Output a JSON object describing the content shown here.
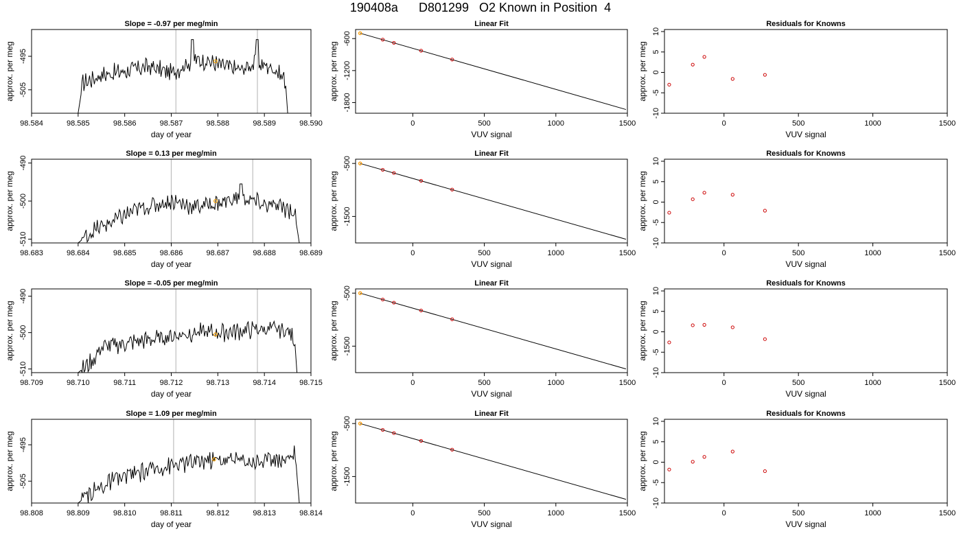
{
  "title": "190408a      D801299   O2 Known in Position  4",
  "colors": {
    "trace": "#000000",
    "marker_orange": "#FFA500",
    "marker_red": "#CC0000",
    "vline": "#BEBEBE",
    "fit_line": "#000000"
  },
  "chart_data": [
    {
      "type": "line",
      "row": 0,
      "panel": "time",
      "title": "Slope =  -0.97  per meg/min",
      "xlabel": "day of year",
      "ylabel": "approx. per meg",
      "xlim": [
        98.584,
        98.59
      ],
      "ylim": [
        -512,
        -487
      ],
      "xticks": [
        "98.584",
        "98.585",
        "98.586",
        "98.587",
        "98.588",
        "98.589",
        "98.590"
      ],
      "yticks": [
        "-495",
        "-505"
      ],
      "vlines": [
        98.5871,
        98.58885
      ],
      "trace_start": 98.585,
      "trace_end": 98.5895,
      "trace_points": [
        [
          98.585,
          -512
        ],
        [
          98.5851,
          -503
        ],
        [
          98.5855,
          -500.5
        ],
        [
          98.586,
          -499.5
        ],
        [
          98.5865,
          -498
        ],
        [
          98.587,
          -500
        ],
        [
          98.5875,
          -496
        ],
        [
          98.5878,
          -496.5
        ],
        [
          98.588,
          -497.5
        ],
        [
          98.5885,
          -499
        ],
        [
          98.5888,
          -497
        ],
        [
          98.5892,
          -498.5
        ],
        [
          98.58945,
          -502
        ],
        [
          98.5895,
          -512
        ]
      ],
      "spikes": [
        [
          98.58745,
          -490
        ],
        [
          98.58885,
          -490
        ]
      ],
      "highlight": [
        98.58795,
        -496.5
      ]
    },
    {
      "type": "scatter",
      "row": 0,
      "panel": "fit",
      "title": "Linear Fit",
      "xlabel": "VUV signal",
      "ylabel": "approx. per meg",
      "xlim": [
        -400,
        1500
      ],
      "ylim": [
        -2000,
        -430
      ],
      "xticks": [
        "0",
        "500",
        "1000",
        "1500"
      ],
      "yticks": [
        "-600",
        "-1200",
        "-1800"
      ],
      "line": [
        [
          -368,
          -500
        ],
        [
          1490,
          -1930
        ]
      ],
      "points": [
        [
          -368,
          -500
        ],
        [
          -210,
          -620
        ],
        [
          -132,
          -680
        ],
        [
          58,
          -827
        ],
        [
          275,
          -993
        ]
      ],
      "highlight": [
        -368,
        -500
      ]
    },
    {
      "type": "scatter",
      "row": 0,
      "panel": "resid",
      "title": "Residuals for Knowns",
      "xlabel": "VUV signal",
      "ylabel": "approx. per meg",
      "xlim": [
        -400,
        1500
      ],
      "ylim": [
        -10,
        10.5
      ],
      "xticks": [
        "0",
        "500",
        "1000",
        "1500"
      ],
      "yticks": [
        "10",
        "5",
        "0",
        "-5",
        "-10"
      ],
      "points": [
        [
          -368,
          -3.0
        ],
        [
          -210,
          1.9
        ],
        [
          -132,
          3.8
        ],
        [
          58,
          -1.6
        ],
        [
          275,
          -0.6
        ]
      ]
    },
    {
      "type": "line",
      "row": 1,
      "panel": "time",
      "title": "Slope =  0.13  per meg/min",
      "xlabel": "day of year",
      "ylabel": "approx. per meg",
      "xlim": [
        98.683,
        98.689
      ],
      "ylim": [
        -511,
        -489
      ],
      "xticks": [
        "98.683",
        "98.684",
        "98.685",
        "98.686",
        "98.687",
        "98.688",
        "98.689"
      ],
      "yticks": [
        "-490",
        "-500",
        "-510"
      ],
      "vlines": [
        98.686,
        98.68775
      ],
      "trace_start": 98.684,
      "trace_end": 98.68875,
      "trace_points": [
        [
          98.684,
          -511
        ],
        [
          98.6843,
          -508
        ],
        [
          98.6848,
          -505
        ],
        [
          98.6853,
          -502
        ],
        [
          98.686,
          -500
        ],
        [
          98.6865,
          -501.5
        ],
        [
          98.687,
          -500.5
        ],
        [
          98.6875,
          -499
        ],
        [
          98.688,
          -501
        ],
        [
          98.6885,
          -502
        ],
        [
          98.68865,
          -503
        ],
        [
          98.68875,
          -511
        ]
      ],
      "spikes": [
        [
          98.6875,
          -495.5
        ]
      ],
      "highlight": [
        98.68695,
        -500
      ]
    },
    {
      "type": "scatter",
      "row": 1,
      "panel": "fit",
      "title": "Linear Fit",
      "xlabel": "VUV signal",
      "ylabel": "approx. per meg",
      "xlim": [
        -400,
        1500
      ],
      "ylim": [
        -2000,
        -420
      ],
      "xticks": [
        "0",
        "500",
        "1000",
        "1500"
      ],
      "yticks": [
        "-500",
        "-1500"
      ],
      "line": [
        [
          -368,
          -500
        ],
        [
          1490,
          -1930
        ]
      ],
      "points": [
        [
          -368,
          -500
        ],
        [
          -210,
          -620
        ],
        [
          -132,
          -680
        ],
        [
          58,
          -827
        ],
        [
          275,
          -993
        ]
      ],
      "highlight": [
        -368,
        -500
      ]
    },
    {
      "type": "scatter",
      "row": 1,
      "panel": "resid",
      "title": "Residuals for Knowns",
      "xlabel": "VUV signal",
      "ylabel": "approx. per meg",
      "xlim": [
        -400,
        1500
      ],
      "ylim": [
        -10,
        10.5
      ],
      "xticks": [
        "0",
        "500",
        "1000",
        "1500"
      ],
      "yticks": [
        "10",
        "5",
        "0",
        "-5",
        "-10"
      ],
      "points": [
        [
          -368,
          -2.6
        ],
        [
          -210,
          0.7
        ],
        [
          -132,
          2.3
        ],
        [
          58,
          1.8
        ],
        [
          275,
          -2.1
        ]
      ]
    },
    {
      "type": "line",
      "row": 2,
      "panel": "time",
      "title": "Slope =  -0.05  per meg/min",
      "xlabel": "day of year",
      "ylabel": "approx. per meg",
      "xlim": [
        98.709,
        98.715
      ],
      "ylim": [
        -511,
        -488
      ],
      "xticks": [
        "98.709",
        "98.710",
        "98.711",
        "98.712",
        "98.713",
        "98.714",
        "98.715"
      ],
      "yticks": [
        "-490",
        "-500",
        "-510"
      ],
      "vlines": [
        98.7121,
        98.71385
      ],
      "trace_start": 98.71,
      "trace_end": 98.7147,
      "trace_points": [
        [
          98.71,
          -511
        ],
        [
          98.7103,
          -508
        ],
        [
          98.7105,
          -504
        ],
        [
          98.711,
          -503
        ],
        [
          98.7115,
          -502
        ],
        [
          98.712,
          -501
        ],
        [
          98.7125,
          -500
        ],
        [
          98.713,
          -500
        ],
        [
          98.7135,
          -499.5
        ],
        [
          98.714,
          -499
        ],
        [
          98.7145,
          -499.5
        ],
        [
          98.71465,
          -502
        ],
        [
          98.7147,
          -511
        ]
      ],
      "spikes": [],
      "highlight": [
        98.71295,
        -500.5
      ]
    },
    {
      "type": "scatter",
      "row": 2,
      "panel": "fit",
      "title": "Linear Fit",
      "xlabel": "VUV signal",
      "ylabel": "approx. per meg",
      "xlim": [
        -400,
        1500
      ],
      "ylim": [
        -2000,
        -420
      ],
      "xticks": [
        "0",
        "500",
        "1000",
        "1500"
      ],
      "yticks": [
        "-500",
        "-1500"
      ],
      "line": [
        [
          -368,
          -500
        ],
        [
          1490,
          -1930
        ]
      ],
      "points": [
        [
          -368,
          -500
        ],
        [
          -210,
          -620
        ],
        [
          -132,
          -680
        ],
        [
          58,
          -827
        ],
        [
          275,
          -993
        ]
      ],
      "highlight": [
        -368,
        -500
      ]
    },
    {
      "type": "scatter",
      "row": 2,
      "panel": "resid",
      "title": "Residuals for Knowns",
      "xlabel": "VUV signal",
      "ylabel": "approx. per meg",
      "xlim": [
        -400,
        1500
      ],
      "ylim": [
        -10,
        10.5
      ],
      "xticks": [
        "0",
        "500",
        "1000",
        "1500"
      ],
      "yticks": [
        "10",
        "5",
        "0",
        "-5",
        "-10"
      ],
      "points": [
        [
          -368,
          -2.6
        ],
        [
          -210,
          1.6
        ],
        [
          -132,
          1.7
        ],
        [
          58,
          1.1
        ],
        [
          275,
          -1.8
        ]
      ]
    },
    {
      "type": "line",
      "row": 3,
      "panel": "time",
      "title": "Slope =  1.09  per meg/min",
      "xlabel": "day of year",
      "ylabel": "approx. per meg",
      "xlim": [
        98.808,
        98.814
      ],
      "ylim": [
        -511,
        -488
      ],
      "xticks": [
        "98.808",
        "98.809",
        "98.810",
        "98.811",
        "98.812",
        "98.813",
        "98.814"
      ],
      "yticks": [
        "-495",
        "-505"
      ],
      "vlines": [
        98.81105,
        98.8128
      ],
      "trace_start": 98.809,
      "trace_end": 98.81375,
      "trace_points": [
        [
          98.809,
          -511
        ],
        [
          98.8093,
          -508
        ],
        [
          98.8097,
          -505
        ],
        [
          98.8102,
          -503
        ],
        [
          98.8108,
          -501
        ],
        [
          98.8113,
          -500
        ],
        [
          98.8118,
          -499
        ],
        [
          98.8123,
          -499
        ],
        [
          98.8128,
          -499.5
        ],
        [
          98.8133,
          -499
        ],
        [
          98.8136,
          -498
        ],
        [
          98.81365,
          -496
        ],
        [
          98.81375,
          -511
        ]
      ],
      "spikes": [],
      "highlight": [
        98.81192,
        -499
      ]
    },
    {
      "type": "scatter",
      "row": 3,
      "panel": "fit",
      "title": "Linear Fit",
      "xlabel": "VUV signal",
      "ylabel": "approx. per meg",
      "xlim": [
        -400,
        1500
      ],
      "ylim": [
        -2000,
        -420
      ],
      "xticks": [
        "0",
        "500",
        "1000",
        "1500"
      ],
      "yticks": [
        "-500",
        "-1500"
      ],
      "line": [
        [
          -368,
          -500
        ],
        [
          1490,
          -1930
        ]
      ],
      "points": [
        [
          -368,
          -500
        ],
        [
          -210,
          -620
        ],
        [
          -132,
          -680
        ],
        [
          58,
          -827
        ],
        [
          275,
          -993
        ]
      ],
      "highlight": [
        -368,
        -500
      ]
    },
    {
      "type": "scatter",
      "row": 3,
      "panel": "resid",
      "title": "Residuals for Knowns",
      "xlabel": "VUV signal",
      "ylabel": "approx. per meg",
      "xlim": [
        -400,
        1500
      ],
      "ylim": [
        -10,
        10.5
      ],
      "xticks": [
        "0",
        "500",
        "1000",
        "1500"
      ],
      "yticks": [
        "10",
        "5",
        "0",
        "-5",
        "-10"
      ],
      "points": [
        [
          -368,
          -1.8
        ],
        [
          -210,
          0.1
        ],
        [
          -132,
          1.3
        ],
        [
          58,
          2.6
        ],
        [
          275,
          -2.2
        ]
      ]
    }
  ]
}
